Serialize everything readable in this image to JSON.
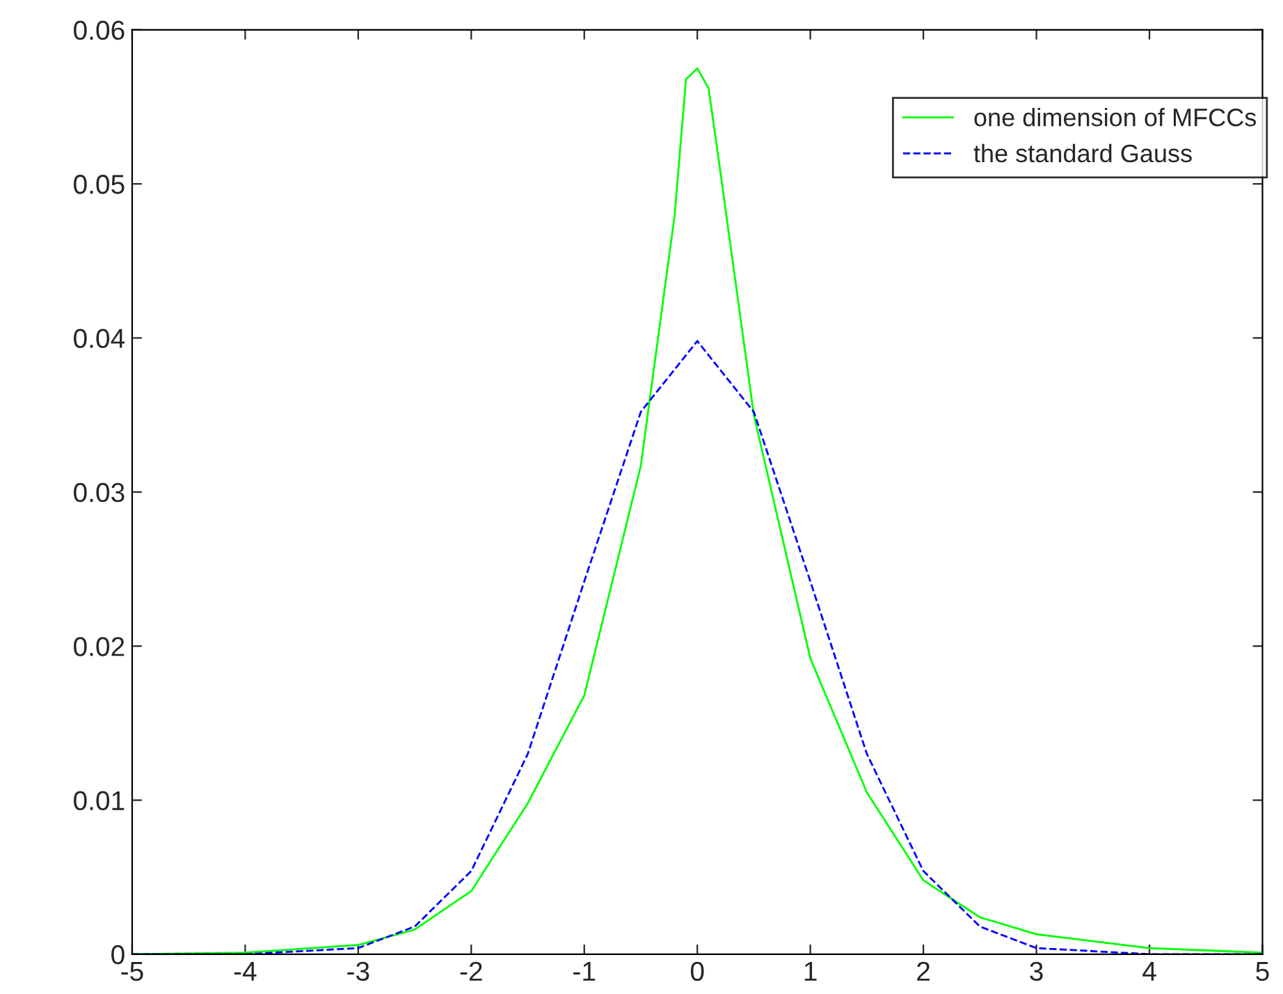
{
  "chart_data": {
    "type": "line",
    "xlim": [
      -5,
      5
    ],
    "ylim": [
      0,
      0.06
    ],
    "xticks": [
      -5,
      -4,
      -3,
      -2,
      -1,
      0,
      1,
      2,
      3,
      4,
      5
    ],
    "yticks": [
      0,
      0.01,
      0.02,
      0.03,
      0.04,
      0.05,
      0.06
    ],
    "legend": "top right",
    "grid": false,
    "series": [
      {
        "name": "one dimension of MFCCs",
        "color": "#00ff00",
        "line_style": "solid",
        "x": [
          -5,
          -4,
          -3,
          -2.5,
          -2,
          -1.5,
          -1,
          -0.5,
          -0.2,
          -0.1,
          0,
          0.1,
          0.2,
          0.5,
          1,
          1.5,
          2,
          2.5,
          3,
          4,
          5
        ],
        "values": [
          0,
          0.0001,
          0.0006,
          0.0016,
          0.0041,
          0.0098,
          0.0168,
          0.0317,
          0.048,
          0.0568,
          0.0575,
          0.0562,
          0.051,
          0.035,
          0.0192,
          0.0105,
          0.0048,
          0.0024,
          0.0013,
          0.0004,
          0.0001
        ]
      },
      {
        "name": "the standard Gauss",
        "color": "#0000ff",
        "line_style": "dashed",
        "x": [
          -5,
          -4,
          -3,
          -2.5,
          -2,
          -1.5,
          -1,
          -0.5,
          0,
          0.5,
          1,
          1.5,
          2,
          2.5,
          3,
          4,
          5
        ],
        "values": [
          0,
          0,
          0.0004,
          0.0018,
          0.0054,
          0.013,
          0.0242,
          0.0352,
          0.0398,
          0.0352,
          0.0242,
          0.013,
          0.0054,
          0.0018,
          0.0004,
          0,
          0
        ]
      }
    ]
  }
}
